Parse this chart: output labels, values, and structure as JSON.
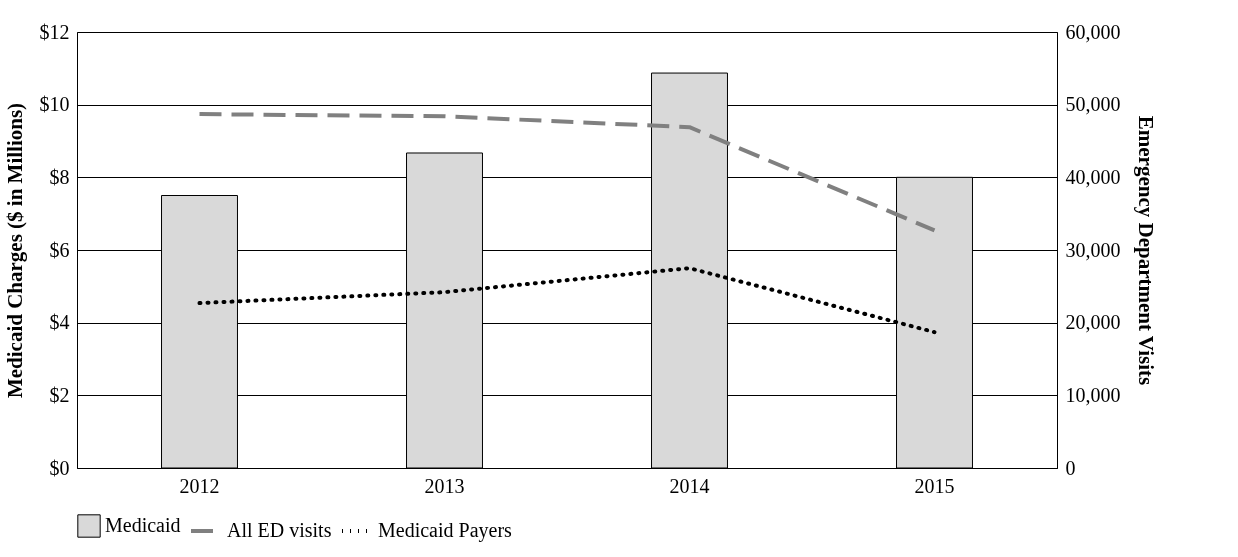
{
  "chart_data": {
    "type": "bar",
    "categories": [
      "2012",
      "2013",
      "2014",
      "2015"
    ],
    "series": [
      {
        "name": "Medicaid",
        "color": "#d9d9d9",
        "values": [
          7.5,
          8.67,
          10.87,
          8.0
        ]
      },
      {
        "name": "All ED visits",
        "type": "line",
        "axis": "y2",
        "color": "#808080",
        "line_style": "dashed",
        "values": [
          48700,
          48400,
          46900,
          32700
        ]
      },
      {
        "name": "Medicaid Payers",
        "type": "line",
        "axis": "y2",
        "color": "#000000",
        "line_style": "dotted",
        "values": [
          22700,
          24200,
          27500,
          18700
        ]
      }
    ],
    "ylabel": "Medicaid Charges ($ in Millions)",
    "y2label": "Emergency Department Visits",
    "ylim": [
      0,
      12
    ],
    "yticks": [
      {
        "value": 0,
        "label": "$0"
      },
      {
        "value": 2,
        "label": "$2"
      },
      {
        "value": 4,
        "label": "$4"
      },
      {
        "value": 6,
        "label": "$6"
      },
      {
        "value": 8,
        "label": "$8"
      },
      {
        "value": 10,
        "label": "$10"
      },
      {
        "value": 12,
        "label": "$12"
      }
    ],
    "y2lim": [
      0,
      60000
    ],
    "y2ticks": [
      0,
      {
        "value": 10000,
        "label": "10,000"
      },
      {
        "value": 20000,
        "label": "20,000"
      },
      {
        "value": 30000,
        "label": "30,000"
      },
      {
        "value": 40000,
        "label": "40,000"
      },
      {
        "value": 50000,
        "label": "50,000"
      },
      {
        "value": 60000,
        "label": "60,000"
      }
    ],
    "grid": "y",
    "legend": "bottom"
  }
}
